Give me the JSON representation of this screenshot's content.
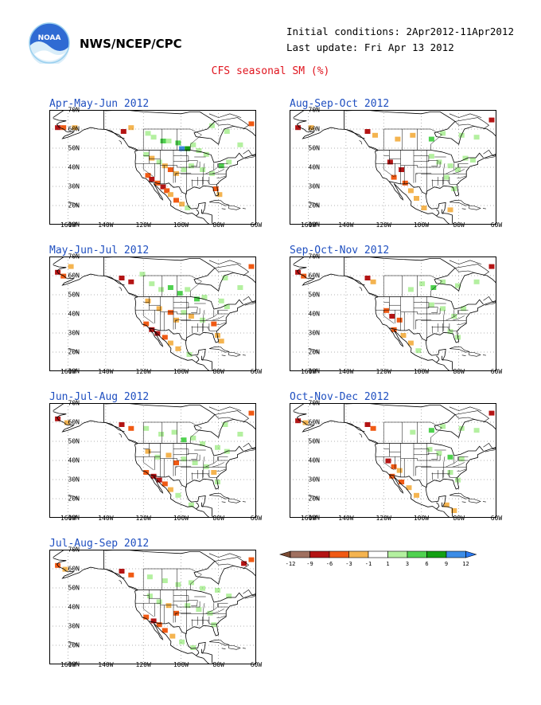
{
  "header": {
    "org": "NWS/NCEP/CPC",
    "initial_conditions": "Initial conditions: 2Apr2012-11Apr2012",
    "last_update": "Last update: Fri Apr 13 2012",
    "title": "CFS seasonal SM (%)",
    "logo_text": "NOAA"
  },
  "axes": {
    "lat_labels": [
      "70N",
      "60N",
      "50N",
      "40N",
      "30N",
      "20N",
      "10N"
    ],
    "lon_labels": [
      "160W",
      "140W",
      "120W",
      "100W",
      "80W",
      "60W"
    ]
  },
  "panels": [
    {
      "title": "Apr-May-Jun 2012"
    },
    {
      "title": "Aug-Sep-Oct 2012"
    },
    {
      "title": "May-Jun-Jul 2012"
    },
    {
      "title": "Sep-Oct-Nov 2012"
    },
    {
      "title": "Jun-Jul-Aug 2012"
    },
    {
      "title": "Oct-Nov-Dec 2012"
    },
    {
      "title": "Jul-Aug-Sep 2012"
    }
  ],
  "colorbar": {
    "labels": [
      "-12",
      "-9",
      "-6",
      "-3",
      "-1",
      "1",
      "3",
      "6",
      "9",
      "12"
    ],
    "colors": [
      "#7a4a32",
      "#a07060",
      "#b41414",
      "#f05a14",
      "#f4b450",
      "#ffffff",
      "#b4f0a0",
      "#50d250",
      "#14a014",
      "#3c8ce6",
      "#2878f0"
    ]
  }
}
